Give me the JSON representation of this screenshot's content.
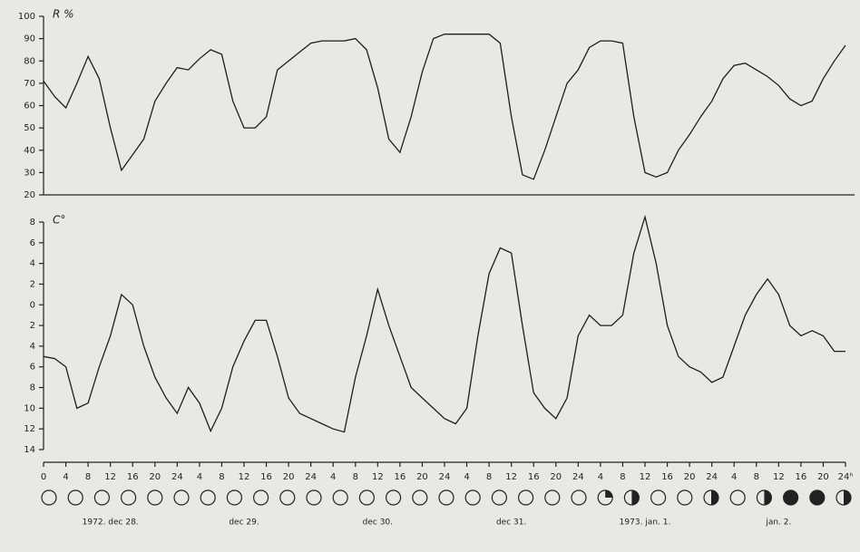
{
  "chart_data": [
    {
      "type": "line",
      "y_label": "R %",
      "color": "#1e1e1e",
      "x": [
        0,
        2,
        4,
        6,
        8,
        10,
        12,
        14,
        16,
        18,
        20,
        22,
        24,
        26,
        28,
        30,
        32,
        34,
        36,
        38,
        40,
        42,
        44,
        46,
        48,
        50,
        52,
        54,
        56,
        58,
        60,
        62,
        64,
        66,
        68,
        70,
        72,
        74,
        76,
        78,
        80,
        82,
        84,
        86,
        88,
        90,
        92,
        94,
        96,
        98,
        100,
        102,
        104,
        106,
        108,
        110,
        112,
        114,
        116,
        118,
        120,
        122,
        124,
        126,
        128,
        130,
        132,
        134,
        136,
        138,
        140,
        142,
        144
      ],
      "values": [
        71,
        64,
        59,
        70,
        82,
        72,
        50,
        31,
        38,
        45,
        62,
        70,
        77,
        76,
        81,
        85,
        83,
        62,
        50,
        50,
        55,
        76,
        80,
        84,
        88,
        89,
        89,
        89,
        90,
        85,
        68,
        45,
        39,
        55,
        75,
        90,
        92,
        92,
        92,
        92,
        92,
        88,
        55,
        29,
        27,
        40,
        55,
        70,
        76,
        86,
        89,
        89,
        88,
        55,
        30,
        28,
        30,
        40,
        47,
        55,
        62,
        72,
        78,
        79,
        76,
        73,
        69,
        63,
        60,
        62,
        72,
        80,
        87
      ],
      "xlim": [
        0,
        144
      ],
      "ylim": [
        20,
        100
      ],
      "yticks": [
        20,
        30,
        40,
        50,
        60,
        70,
        80,
        90,
        100
      ]
    },
    {
      "type": "line",
      "y_label": "C°",
      "color": "#1e1e1e",
      "x": [
        0,
        2,
        4,
        6,
        8,
        10,
        12,
        14,
        16,
        18,
        20,
        22,
        24,
        26,
        28,
        30,
        32,
        34,
        36,
        38,
        40,
        42,
        44,
        46,
        48,
        50,
        52,
        54,
        56,
        58,
        60,
        62,
        64,
        66,
        68,
        70,
        72,
        74,
        76,
        78,
        80,
        82,
        84,
        86,
        88,
        90,
        92,
        94,
        96,
        98,
        100,
        102,
        104,
        106,
        108,
        110,
        112,
        114,
        116,
        118,
        120,
        122,
        124,
        126,
        128,
        130,
        132,
        134,
        136,
        138,
        140,
        142,
        144
      ],
      "values": [
        -5,
        -5.2,
        -6,
        -10,
        -9.5,
        -6,
        -3,
        1,
        0,
        -4,
        -7,
        -9,
        -10.5,
        -8,
        -9.5,
        -12.2,
        -10,
        -6,
        -3.5,
        -1.5,
        -1.5,
        -5,
        -9,
        -10.5,
        -11,
        -11.5,
        -12,
        -12.3,
        -7,
        -3,
        1.5,
        -2,
        -5,
        -8,
        -9,
        -10,
        -11,
        -11.5,
        -10,
        -3,
        3,
        5.5,
        5,
        -2,
        -8.5,
        -10,
        -11,
        -9,
        -3,
        -1,
        -2,
        -2,
        -1,
        5,
        8.5,
        4,
        -2,
        -5,
        -6,
        -6.5,
        -7.5,
        -7,
        -4,
        -1,
        1,
        2.5,
        1,
        -2,
        -3,
        -2.5,
        -3,
        -4.5,
        -4.5
      ],
      "xlim": [
        0,
        144
      ],
      "ylim": [
        -14,
        8
      ],
      "yticks": [
        8,
        6,
        4,
        2,
        0,
        {
          "value": -2,
          "label": "2"
        },
        {
          "value": -4,
          "label": "4"
        },
        {
          "value": -6,
          "label": "6"
        },
        {
          "value": -8,
          "label": "8"
        },
        {
          "value": -10,
          "label": "10"
        },
        {
          "value": -12,
          "label": "12"
        },
        {
          "value": -14,
          "label": "14"
        }
      ],
      "xticks": [
        0,
        4,
        8,
        12,
        16,
        20,
        24,
        {
          "value": 28,
          "label": "4"
        },
        {
          "value": 32,
          "label": "8"
        },
        {
          "value": 36,
          "label": "12"
        },
        {
          "value": 40,
          "label": "16"
        },
        {
          "value": 44,
          "label": "20"
        },
        {
          "value": 48,
          "label": "24"
        },
        {
          "value": 52,
          "label": "4"
        },
        {
          "value": 56,
          "label": "8"
        },
        {
          "value": 60,
          "label": "12"
        },
        {
          "value": 64,
          "label": "16"
        },
        {
          "value": 68,
          "label": "20"
        },
        {
          "value": 72,
          "label": "24"
        },
        {
          "value": 76,
          "label": "4"
        },
        {
          "value": 80,
          "label": "8"
        },
        {
          "value": 84,
          "label": "12"
        },
        {
          "value": 88,
          "label": "16"
        },
        {
          "value": 92,
          "label": "20"
        },
        {
          "value": 96,
          "label": "24"
        },
        {
          "value": 100,
          "label": "4"
        },
        {
          "value": 104,
          "label": "8"
        },
        {
          "value": 108,
          "label": "12"
        },
        {
          "value": 112,
          "label": "16"
        },
        {
          "value": 116,
          "label": "20"
        },
        {
          "value": 120,
          "label": "24"
        },
        {
          "value": 124,
          "label": "4"
        },
        {
          "value": 128,
          "label": "8"
        },
        {
          "value": 132,
          "label": "12"
        },
        {
          "value": 136,
          "label": "16"
        },
        {
          "value": 140,
          "label": "20"
        },
        {
          "value": 144,
          "label": "24ʰ"
        }
      ],
      "day_labels": [
        "1972. dec 28.",
        "dec 29.",
        "dec 30.",
        "dec 31.",
        "1973. jan. 1.",
        "jan. 2."
      ]
    }
  ]
}
